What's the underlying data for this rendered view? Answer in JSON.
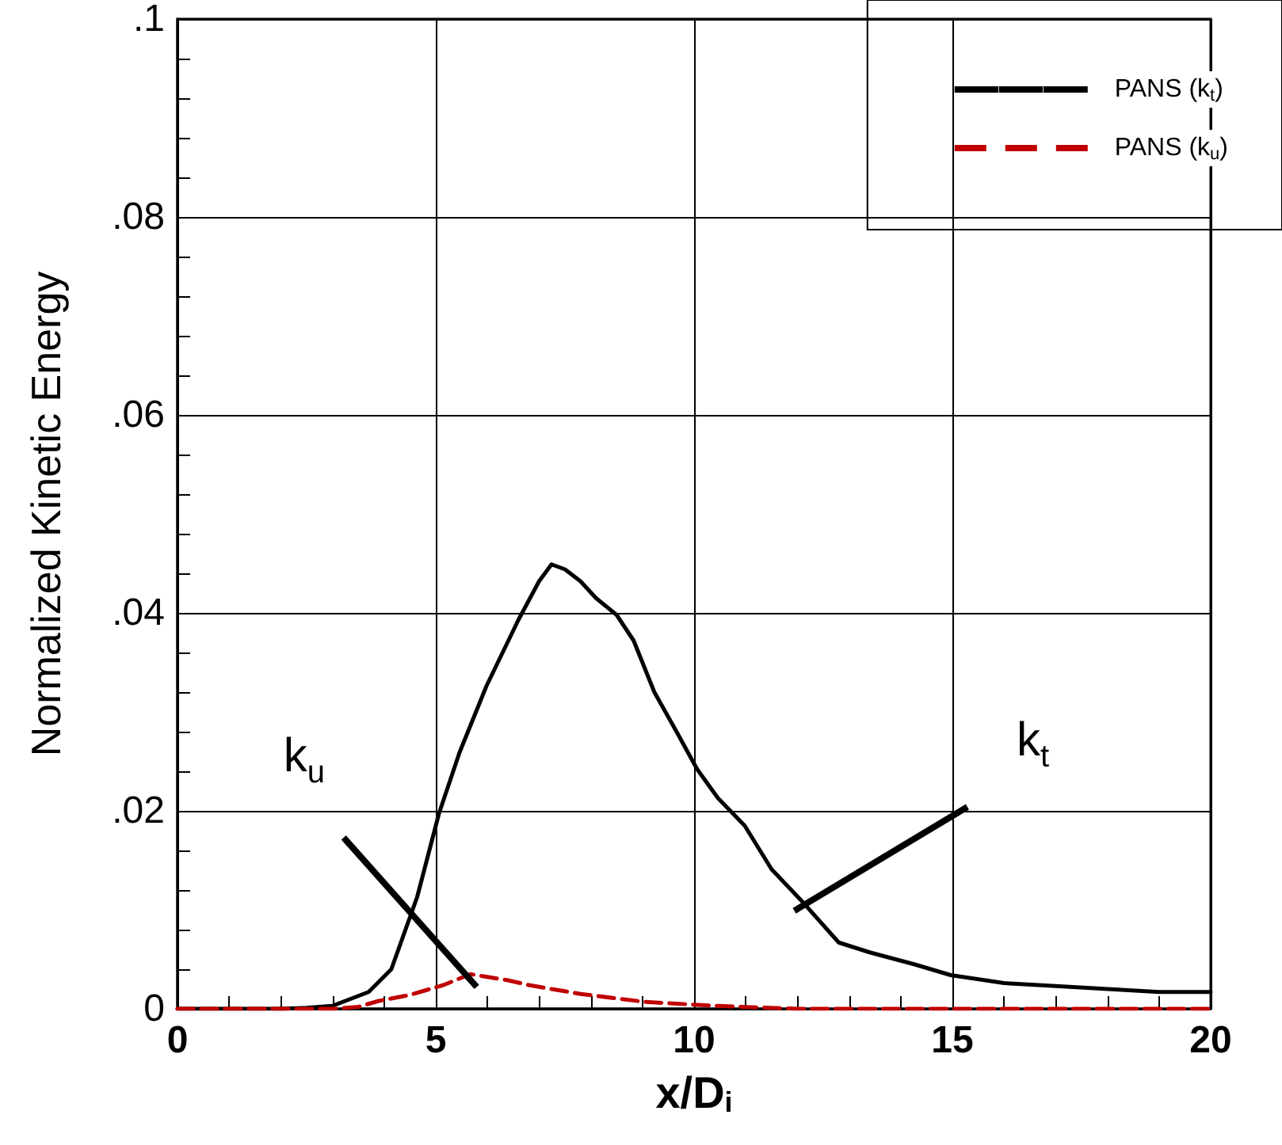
{
  "chart_data": {
    "type": "line",
    "xlabel": "x/D$_{i}$",
    "ylabel": "Normalized Kinetic Energy",
    "xlim": [
      0,
      20
    ],
    "xticks": [
      0,
      5,
      10,
      15,
      20
    ],
    "ylim": [
      0,
      0.1
    ],
    "yticks": [
      0,
      {
        "value": 0.02,
        "label": ".02"
      },
      {
        "value": 0.04,
        "label": ".04"
      },
      {
        "value": 0.06,
        "label": ".06"
      },
      {
        "value": 0.08,
        "label": ".08"
      },
      {
        "value": 0.1,
        "label": ".1"
      }
    ],
    "grid": true,
    "legend": "top right",
    "marker": "none",
    "series": [
      {
        "name": "PANS (k$_{t}$)",
        "color": "#000000",
        "line_style": "solid",
        "x": [
          0,
          1,
          2,
          2.5,
          3.0,
          3.7,
          4.14,
          4.64,
          5.06,
          5.46,
          5.98,
          6.6,
          7.0,
          7.24,
          7.5,
          7.8,
          8.1,
          8.5,
          8.83,
          9.23,
          9.66,
          10.06,
          10.46,
          10.98,
          11.5,
          12.1,
          12.8,
          13.4,
          14.26,
          14.97,
          16,
          17,
          18,
          19,
          20
        ],
        "values": [
          0,
          0,
          0,
          0.0001,
          0.0003,
          0.0017,
          0.004,
          0.0113,
          0.0197,
          0.0259,
          0.0326,
          0.0393,
          0.0432,
          0.0449,
          0.0444,
          0.0432,
          0.0415,
          0.0398,
          0.0372,
          0.032,
          0.028,
          0.0242,
          0.0213,
          0.0185,
          0.0141,
          0.0108,
          0.0067,
          0.0057,
          0.0045,
          0.0034,
          0.0026,
          0.0023,
          0.002,
          0.0017,
          0.0017
        ]
      },
      {
        "name": "PANS (k$_{u}$)",
        "color": "#c00000",
        "line_style": "dashed",
        "x": [
          0,
          1,
          2,
          3,
          3.5,
          3.9,
          4.5,
          5.15,
          5.67,
          6.38,
          6.8,
          7.8,
          9.05,
          10.4,
          12,
          14,
          16,
          18,
          20
        ],
        "values": [
          0,
          0,
          0,
          0,
          0.0002,
          0.0008,
          0.0014,
          0.0024,
          0.0035,
          0.0029,
          0.0024,
          0.0015,
          0.0007,
          0.0003,
          0,
          0,
          0,
          0,
          0
        ]
      }
    ],
    "annotations": [
      {
        "text": "k$_{u}$",
        "x": 5.67,
        "y": 0.0035
      },
      {
        "text": "k$_{t}$",
        "x": 12.1,
        "y": 0.0108
      }
    ]
  }
}
